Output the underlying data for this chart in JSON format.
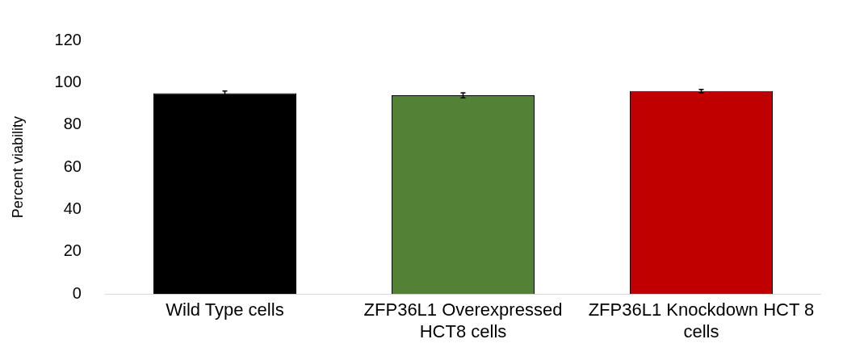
{
  "chart_data": {
    "type": "bar",
    "ylabel": "Percent viability",
    "categories": [
      "Wild Type cells",
      "ZFP36L1 Overexpressed HCT8 cells",
      "ZFP36L1 Knockdown HCT 8 cells"
    ],
    "values": [
      95,
      94,
      96
    ],
    "errors": [
      1,
      1.2,
      0.8
    ],
    "colors": [
      "#000000",
      "#538135",
      "#c00000"
    ],
    "ylim": [
      0,
      120
    ],
    "yticks": [
      0,
      20,
      40,
      60,
      80,
      100,
      120
    ],
    "grid": false,
    "legend": false
  }
}
